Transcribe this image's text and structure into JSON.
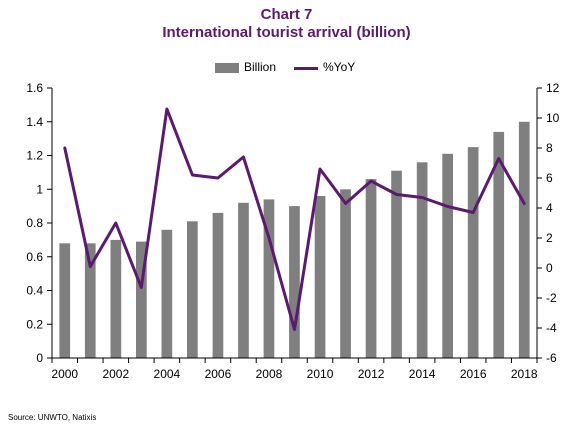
{
  "chart_data": {
    "type": "bar+line",
    "title": "Chart 7",
    "subtitle": "International tourist arrival (billion)",
    "x": [
      2000,
      2001,
      2002,
      2003,
      2004,
      2005,
      2006,
      2007,
      2008,
      2009,
      2010,
      2011,
      2012,
      2013,
      2014,
      2015,
      2016,
      2017,
      2018
    ],
    "x_tick_labels": [
      "2000",
      "2002",
      "2004",
      "2006",
      "2008",
      "2010",
      "2012",
      "2014",
      "2016",
      "2018"
    ],
    "series": [
      {
        "name": "Billion",
        "type": "bar",
        "axis": "left",
        "color": "#7f7f7f",
        "values": [
          0.68,
          0.68,
          0.7,
          0.69,
          0.76,
          0.81,
          0.86,
          0.92,
          0.94,
          0.9,
          0.96,
          1.0,
          1.06,
          1.11,
          1.16,
          1.21,
          1.25,
          1.34,
          1.4
        ]
      },
      {
        "name": "%YoY",
        "type": "line",
        "axis": "right",
        "color": "#5b1a6e",
        "values": [
          8.0,
          0.1,
          3.0,
          -1.3,
          10.6,
          6.2,
          6.0,
          7.4,
          2.0,
          -4.1,
          6.6,
          4.3,
          5.8,
          4.9,
          4.7,
          4.1,
          3.7,
          7.3,
          4.3
        ]
      }
    ],
    "y_left": {
      "ylim": [
        0,
        1.6
      ],
      "ticks": [
        "0",
        "0.2",
        "0.4",
        "0.6",
        "0.8",
        "1",
        "1.2",
        "1.4",
        "1.6"
      ]
    },
    "y_right": {
      "ylim": [
        -6,
        12
      ],
      "ticks": [
        "-6",
        "-4",
        "-2",
        "0",
        "2",
        "4",
        "6",
        "8",
        "10",
        "12"
      ]
    },
    "grid": false,
    "legend_position": "top-center"
  },
  "source": "Source:  UNWTO, Natixis"
}
